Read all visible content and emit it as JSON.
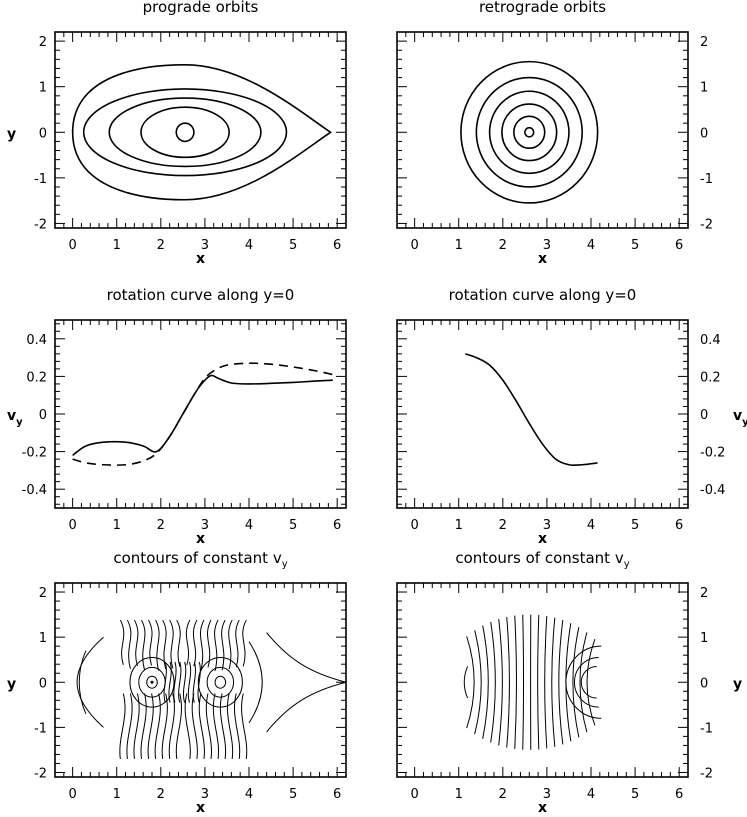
{
  "colors": {
    "line": "#000000",
    "background": "#ffffff"
  },
  "chart_data": [
    {
      "type": "line",
      "title": "prograde orbits",
      "xlabel": "x",
      "ylabel": "y",
      "xlim": [
        -0.4,
        6.2
      ],
      "ylim": [
        -2.1,
        2.2
      ],
      "xticks": [
        0,
        1,
        2,
        3,
        4,
        5,
        6
      ],
      "yticks": [
        -2,
        -1,
        0,
        1,
        2
      ],
      "y_axis_side": "left",
      "orbits": [
        {
          "kind": "circle",
          "cx": 2.55,
          "cy": 0,
          "r": 0.2
        },
        {
          "kind": "ellipse",
          "cx": 2.55,
          "cy": 0,
          "rx": 1.0,
          "ry": 0.55
        },
        {
          "kind": "ellipse",
          "cx": 2.55,
          "cy": 0,
          "rx": 1.72,
          "ry": 0.75
        },
        {
          "kind": "ellipse",
          "cx": 2.55,
          "cy": 0,
          "rx": 2.3,
          "ry": 0.95
        },
        {
          "kind": "lens",
          "left": 0.0,
          "right": 5.85,
          "top": 1.48,
          "bottom": -1.48,
          "center": 2.55
        }
      ]
    },
    {
      "type": "line",
      "title": "retrograde orbits",
      "xlabel": "x",
      "ylabel": "",
      "xlim": [
        -0.4,
        6.2
      ],
      "ylim": [
        -2.1,
        2.2
      ],
      "xticks": [
        0,
        1,
        2,
        3,
        4,
        5,
        6
      ],
      "yticks": [
        -2,
        -1,
        0,
        1,
        2
      ],
      "y_axis_side": "right",
      "orbits": [
        {
          "kind": "circle",
          "cx": 2.6,
          "cy": 0,
          "r": 0.1
        },
        {
          "kind": "circle",
          "cx": 2.6,
          "cy": 0,
          "r": 0.35
        },
        {
          "kind": "circle",
          "cx": 2.6,
          "cy": 0,
          "r": 0.62
        },
        {
          "kind": "circle",
          "cx": 2.6,
          "cy": 0,
          "r": 0.9
        },
        {
          "kind": "circle",
          "cx": 2.6,
          "cy": 0,
          "r": 1.2
        },
        {
          "kind": "circle",
          "cx": 2.6,
          "cy": 0,
          "r": 1.55
        }
      ]
    },
    {
      "type": "line",
      "title": "rotation curve along y=0",
      "xlabel": "x",
      "ylabel": "vy",
      "xlim": [
        -0.4,
        6.2
      ],
      "ylim": [
        -0.5,
        0.5
      ],
      "xticks": [
        0,
        1,
        2,
        3,
        4,
        5,
        6
      ],
      "yticks": [
        -0.4,
        -0.2,
        0,
        0.2,
        0.4
      ],
      "y_axis_side": "left",
      "series": [
        {
          "style": "solid",
          "x": [
            0.0,
            0.3,
            0.7,
            1.2,
            1.6,
            1.9,
            2.2,
            2.5,
            2.8,
            3.0,
            3.15,
            3.3,
            3.6,
            4.0,
            4.5,
            5.0,
            5.5,
            5.9
          ],
          "y": [
            -0.22,
            -0.17,
            -0.15,
            -0.15,
            -0.17,
            -0.2,
            -0.12,
            0.0,
            0.12,
            0.18,
            0.205,
            0.19,
            0.165,
            0.16,
            0.163,
            0.168,
            0.175,
            0.18
          ]
        },
        {
          "style": "dashed",
          "x": [
            0.0,
            0.3,
            0.7,
            1.2,
            1.6,
            1.9,
            2.2,
            2.5,
            2.8,
            3.0,
            3.2,
            3.5,
            4.0,
            4.5,
            5.0,
            5.5,
            5.9
          ],
          "y": [
            -0.24,
            -0.26,
            -0.27,
            -0.27,
            -0.25,
            -0.21,
            -0.12,
            0.0,
            0.12,
            0.19,
            0.23,
            0.26,
            0.27,
            0.265,
            0.25,
            0.23,
            0.21
          ]
        }
      ]
    },
    {
      "type": "line",
      "title": "rotation curve along y=0",
      "xlabel": "x",
      "ylabel": "vy",
      "xlim": [
        -0.4,
        6.2
      ],
      "ylim": [
        -0.5,
        0.5
      ],
      "xticks": [
        0,
        1,
        2,
        3,
        4,
        5,
        6
      ],
      "yticks": [
        -0.4,
        -0.2,
        0,
        0.2,
        0.4
      ],
      "y_axis_side": "right",
      "series": [
        {
          "style": "solid",
          "x": [
            1.15,
            1.4,
            1.7,
            2.0,
            2.3,
            2.6,
            2.9,
            3.2,
            3.5,
            3.8,
            4.15
          ],
          "y": [
            0.32,
            0.3,
            0.26,
            0.18,
            0.07,
            -0.05,
            -0.16,
            -0.24,
            -0.27,
            -0.27,
            -0.26
          ]
        }
      ]
    },
    {
      "type": "line",
      "title": "contours of constant vy",
      "xlabel": "x",
      "ylabel": "y",
      "xlim": [
        -0.4,
        6.2
      ],
      "ylim": [
        -2.1,
        2.2
      ],
      "xticks": [
        0,
        1,
        2,
        3,
        4,
        5,
        6
      ],
      "yticks": [
        -2,
        -1,
        0,
        1,
        2
      ],
      "y_axis_side": "left"
    },
    {
      "type": "line",
      "title": "contours of constant vy",
      "xlabel": "x",
      "ylabel": "y",
      "xlim": [
        -0.4,
        6.2
      ],
      "ylim": [
        -2.1,
        2.2
      ],
      "xticks": [
        0,
        1,
        2,
        3,
        4,
        5,
        6
      ],
      "yticks": [
        -2,
        -1,
        0,
        1,
        2
      ],
      "y_axis_side": "right"
    }
  ]
}
